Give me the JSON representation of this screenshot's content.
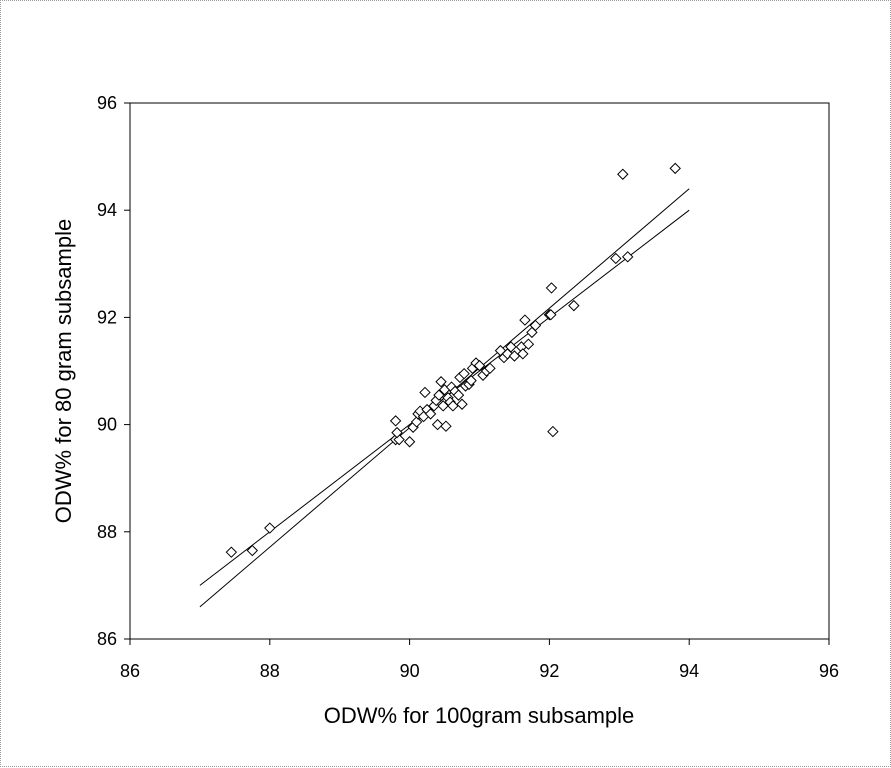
{
  "chart_data": {
    "type": "scatter",
    "title": "",
    "xlabel": "ODW% for 100gram subsample",
    "ylabel": "ODW% for 80 gram subsample",
    "xlim": [
      86,
      96
    ],
    "ylim": [
      86,
      96
    ],
    "xticks": [
      "86",
      "88",
      "90",
      "92",
      "94",
      "96"
    ],
    "yticks": [
      "86",
      "88",
      "90",
      "92",
      "94",
      "96"
    ],
    "grid": false,
    "legend": "none",
    "marker": "diamond",
    "marker_color": "#000000",
    "series": [
      {
        "points": [
          [
            87.45,
            87.62
          ],
          [
            87.75,
            87.65
          ],
          [
            88.0,
            88.07
          ],
          [
            89.8,
            90.07
          ],
          [
            89.8,
            89.72
          ],
          [
            89.85,
            89.72
          ],
          [
            89.82,
            89.85
          ],
          [
            90.0,
            89.68
          ],
          [
            90.05,
            89.95
          ],
          [
            90.1,
            90.05
          ],
          [
            90.12,
            90.2
          ],
          [
            90.15,
            90.25
          ],
          [
            90.2,
            90.15
          ],
          [
            90.22,
            90.6
          ],
          [
            90.25,
            90.28
          ],
          [
            90.3,
            90.2
          ],
          [
            90.35,
            90.35
          ],
          [
            90.38,
            90.45
          ],
          [
            90.4,
            90.0
          ],
          [
            90.42,
            90.55
          ],
          [
            90.45,
            90.8
          ],
          [
            90.48,
            90.35
          ],
          [
            90.5,
            90.65
          ],
          [
            90.52,
            89.97
          ],
          [
            90.55,
            90.5
          ],
          [
            90.58,
            90.42
          ],
          [
            90.6,
            90.7
          ],
          [
            90.62,
            90.35
          ],
          [
            90.65,
            90.62
          ],
          [
            90.7,
            90.55
          ],
          [
            90.72,
            90.88
          ],
          [
            90.75,
            90.38
          ],
          [
            90.78,
            90.95
          ],
          [
            90.8,
            90.72
          ],
          [
            90.85,
            90.75
          ],
          [
            90.88,
            90.82
          ],
          [
            90.9,
            91.05
          ],
          [
            90.95,
            91.15
          ],
          [
            91.0,
            91.1
          ],
          [
            91.05,
            90.92
          ],
          [
            91.1,
            91.0
          ],
          [
            91.15,
            91.05
          ],
          [
            91.3,
            91.38
          ],
          [
            91.35,
            91.25
          ],
          [
            91.4,
            91.32
          ],
          [
            91.45,
            91.45
          ],
          [
            91.5,
            91.28
          ],
          [
            91.6,
            91.45
          ],
          [
            91.62,
            91.32
          ],
          [
            91.65,
            91.95
          ],
          [
            91.7,
            91.5
          ],
          [
            91.75,
            91.72
          ],
          [
            91.8,
            91.85
          ],
          [
            92.0,
            92.05
          ],
          [
            92.02,
            92.05
          ],
          [
            92.03,
            92.55
          ],
          [
            92.05,
            89.87
          ],
          [
            92.35,
            92.22
          ],
          [
            92.95,
            93.1
          ],
          [
            93.05,
            94.67
          ],
          [
            93.12,
            93.13
          ],
          [
            93.8,
            94.78
          ]
        ]
      }
    ],
    "trend_lines": [
      {
        "from": [
          87.0,
          86.6
        ],
        "to": [
          94.0,
          94.4
        ]
      },
      {
        "from": [
          87.0,
          87.0
        ],
        "to": [
          94.0,
          94.0
        ]
      }
    ]
  }
}
